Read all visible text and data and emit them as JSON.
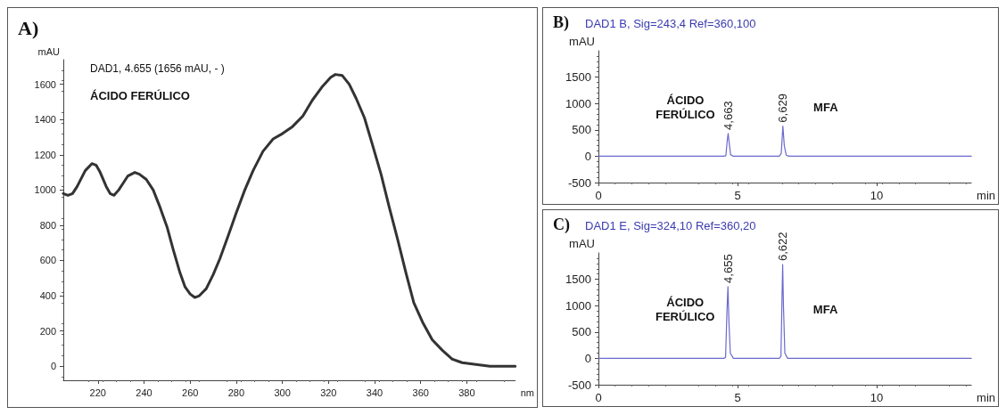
{
  "chart_data": [
    {
      "type": "line",
      "title": "A)",
      "xlabel": "nm",
      "ylabel": "mAU",
      "annotations": [
        "DAD1, 4.655 (1656 mAU, - )",
        "ÁCIDO FERÚLICO"
      ],
      "xlim": [
        205,
        401
      ],
      "xticks": [
        220,
        240,
        260,
        280,
        300,
        320,
        340,
        360,
        380
      ],
      "ylim": [
        -80,
        1740
      ],
      "yticks": [
        0,
        200,
        400,
        600,
        800,
        1000,
        1200,
        1400,
        1600
      ],
      "series": [
        {
          "color": "#333333",
          "x": [
            205,
            207,
            209,
            211,
            214.5,
            217.4,
            219.3,
            221,
            223.6,
            225.3,
            227,
            229,
            231,
            233,
            236,
            238,
            241,
            244,
            247,
            250,
            252.7,
            255.6,
            257.8,
            260,
            262,
            264,
            267,
            270,
            272.9,
            276.5,
            280,
            283.7,
            287.3,
            291.6,
            296,
            300,
            304.4,
            308.9,
            313,
            317.5,
            321,
            323,
            326,
            329,
            332,
            335.6,
            339,
            342.8,
            346.4,
            350,
            353.6,
            357,
            360.8,
            365,
            369.4,
            373.7,
            378,
            384,
            390,
            401
          ],
          "values": [
            980,
            970,
            980,
            1020,
            1110,
            1150,
            1140,
            1100,
            1020,
            980,
            970,
            1000,
            1040,
            1080,
            1100,
            1090,
            1060,
            1000,
            900,
            790,
            660,
            530,
            450,
            410,
            390,
            400,
            440,
            520,
            610,
            740,
            870,
            1000,
            1110,
            1220,
            1290,
            1320,
            1360,
            1420,
            1510,
            1590,
            1640,
            1656,
            1650,
            1600,
            1520,
            1410,
            1260,
            1090,
            900,
            720,
            530,
            360,
            250,
            150,
            90,
            40,
            20,
            10,
            0,
            0
          ]
        }
      ]
    },
    {
      "type": "line",
      "title": "B)",
      "subtitle": "DAD1 B, Sig=243,4 Ref=360,100",
      "xlabel": "min",
      "ylabel": "mAU",
      "annotations": [
        "ÁCIDO\nFERÚLICO",
        "MFA",
        {
          "text": "4,663",
          "x": 4.663,
          "y": 430
        },
        {
          "text": "6,629",
          "x": 6.629,
          "y": 570
        }
      ],
      "xlim": [
        0,
        13.4
      ],
      "xticks": [
        0,
        5,
        10
      ],
      "ylim": [
        -500,
        2000
      ],
      "yticks": [
        -500,
        0,
        500,
        1000,
        1500
      ],
      "series": [
        {
          "color": "#6a6acc",
          "x": [
            0,
            4.5,
            4.58,
            4.63,
            4.663,
            4.7,
            4.75,
            4.85,
            6.5,
            6.57,
            6.629,
            6.68,
            6.75,
            6.85,
            13.4
          ],
          "values": [
            0,
            0,
            10,
            300,
            430,
            250,
            30,
            0,
            0,
            50,
            570,
            200,
            20,
            0,
            0
          ]
        }
      ]
    },
    {
      "type": "line",
      "title": "C)",
      "subtitle": "DAD1 E, Sig=324,10 Ref=360,20",
      "xlabel": "min",
      "ylabel": "mAU",
      "annotations": [
        "ÁCIDO\nFERÚLICO",
        "MFA",
        {
          "text": "4,655",
          "x": 4.655,
          "y": 1360
        },
        {
          "text": "6,622",
          "x": 6.622,
          "y": 1780
        }
      ],
      "xlim": [
        0,
        13.4
      ],
      "xticks": [
        0,
        5,
        10
      ],
      "ylim": [
        -500,
        2000
      ],
      "yticks": [
        -500,
        0,
        500,
        1000,
        1500
      ],
      "series": [
        {
          "color": "#6a6acc",
          "x": [
            0,
            4.5,
            4.57,
            4.62,
            4.655,
            4.69,
            4.74,
            4.85,
            6.5,
            6.56,
            6.6,
            6.622,
            6.65,
            6.7,
            6.8,
            13.4
          ],
          "values": [
            0,
            0,
            20,
            900,
            1360,
            700,
            100,
            0,
            0,
            40,
            1200,
            1780,
            1000,
            100,
            0,
            0
          ]
        }
      ]
    }
  ]
}
